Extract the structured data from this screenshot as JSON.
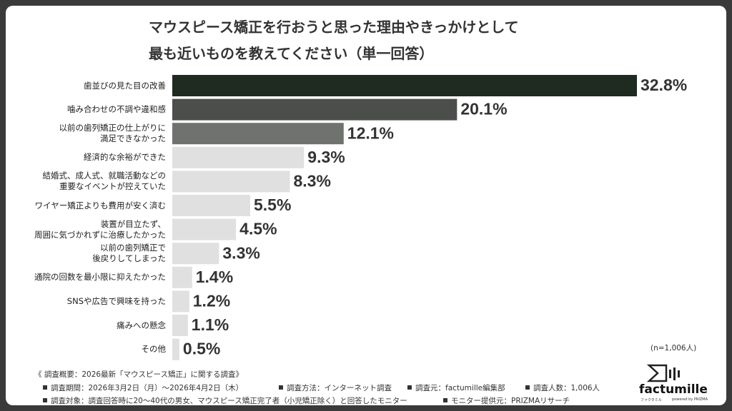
{
  "chart_data": {
    "type": "bar",
    "orientation": "horizontal",
    "title": "マウスピース矯正を行おうと思った理由やきっかけとして\n最も近いものを教えてください（単一回答）",
    "categories": [
      "歯並びの見た目の改善",
      "噛み合わせの不調や違和感",
      "以前の歯列矯正の仕上がりに\n満足できなかった",
      "経済的な余裕ができた",
      "結婚式、成人式、就職活動などの\n重要なイベントが控えていた",
      "ワイヤー矯正よりも費用が安く済む",
      "装置が目立たず、\n周囲に気づかれずに治療したかった",
      "以前の歯列矯正で\n後戻りしてしまった",
      "通院の回数を最小限に抑えたかった",
      "SNSや広告で興味を持った",
      "痛みへの懸念",
      "その他"
    ],
    "values": [
      32.8,
      20.1,
      12.1,
      9.3,
      8.3,
      5.5,
      4.5,
      3.3,
      1.4,
      1.2,
      1.1,
      0.5
    ],
    "value_labels": [
      "32.8%",
      "20.1%",
      "12.1%",
      "9.3%",
      "8.3%",
      "5.5%",
      "4.5%",
      "3.3%",
      "1.4%",
      "1.2%",
      "1.1%",
      "0.5%"
    ],
    "colors": [
      "#1f2a21",
      "#4b4e4b",
      "#6f726f",
      "#e0e0e0",
      "#e0e0e0",
      "#e0e0e0",
      "#e0e0e0",
      "#e0e0e0",
      "#e0e0e0",
      "#e0e0e0",
      "#e0e0e0",
      "#e0e0e0"
    ],
    "annotation": "(n=1,006人)"
  },
  "footer": {
    "summary": "《 調査概要：2026最新「マウスピース矯正」に関する調査》",
    "items": [
      [
        "調査期間：2026年3月2日（月）〜2026年4月2日（木）",
        "調査方法：インターネット調査",
        "調査元：factumille編集部",
        "調査人数：1,006人"
      ],
      [
        "調査対象：調査回答時に20〜40代の男女、マウスピース矯正完了者（小児矯正除く）と回答したモニター",
        "モニター提供元：PRIZMAリサーチ"
      ]
    ],
    "logo": "factumille",
    "logo_sub": "ファクタミル",
    "powered_by": "powered by PRIZMA"
  }
}
